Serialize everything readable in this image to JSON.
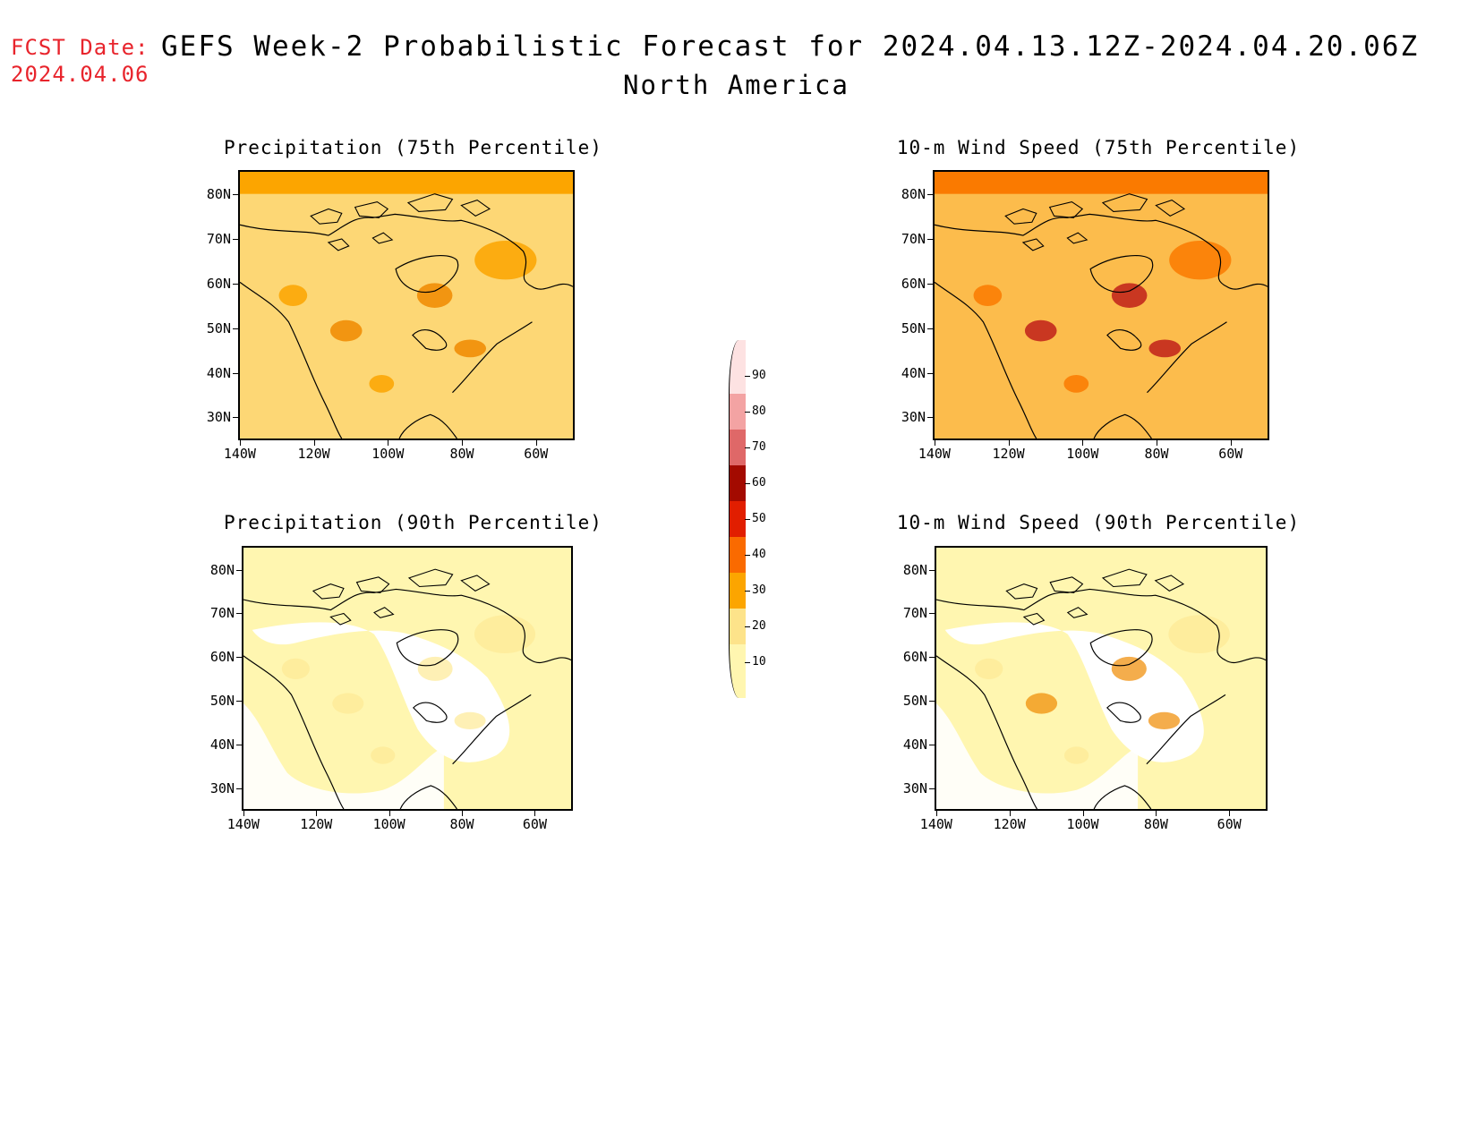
{
  "header": {
    "fcst_label": "FCST Date:",
    "fcst_date": "2024.04.06",
    "title": "GEFS Week-2 Probabilistic Forecast for 2024.04.13.12Z-2024.04.20.06Z",
    "subtitle": "North America"
  },
  "panels": [
    {
      "title": "Precipitation (75th Percentile)",
      "fill": "#fdd775",
      "accent": "#fca500",
      "spots": "#f08a00"
    },
    {
      "title": "10-m Wind Speed (75th Percentile)",
      "fill": "#fcbc4c",
      "accent": "#fa7a00",
      "spots": "#c0201a"
    },
    {
      "title": "Precipitation (90th Percentile)",
      "fill": "#fff6b0",
      "accent": "#fde995",
      "spots": "#fde995"
    },
    {
      "title": "10-m Wind Speed (90th Percentile)",
      "fill": "#fff6b0",
      "accent": "#fde995",
      "spots": "#f08a00"
    }
  ],
  "axes": {
    "lat_labels": [
      "80N",
      "70N",
      "60N",
      "50N",
      "40N",
      "30N"
    ],
    "lon_labels": [
      "140W",
      "120W",
      "100W",
      "80W",
      "60W"
    ]
  },
  "colorbar": {
    "levels": [
      "10",
      "20",
      "30",
      "40",
      "50",
      "60",
      "70",
      "80",
      "90"
    ],
    "colors": [
      "#fff6b0",
      "#fde38a",
      "#fca500",
      "#fa6a00",
      "#e11e00",
      "#a30a00",
      "#df6868",
      "#f3a3a3",
      "#fde2e2"
    ]
  }
}
